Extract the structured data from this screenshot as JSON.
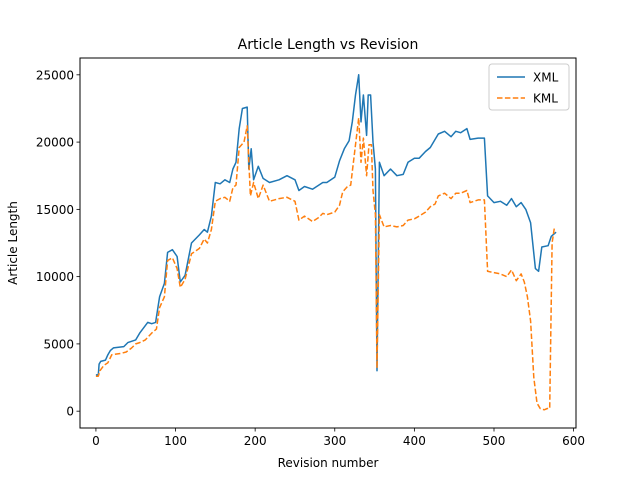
{
  "chart_data": {
    "type": "line",
    "title": "Article Length vs Revision",
    "xlabel": "Revision number",
    "ylabel": "Article Length",
    "xlim": [
      -20,
      603
    ],
    "ylim": [
      -1250,
      26250
    ],
    "xticks": [
      0,
      100,
      200,
      300,
      400,
      500,
      600
    ],
    "yticks": [
      0,
      5000,
      10000,
      15000,
      20000,
      25000
    ],
    "legend_position": "top-right",
    "grid": false,
    "series": [
      {
        "name": "XML",
        "color": "#1f77b4",
        "style": "solid",
        "points": [
          [
            0,
            2700
          ],
          [
            3,
            2700
          ],
          [
            4,
            3500
          ],
          [
            6,
            3700
          ],
          [
            12,
            3800
          ],
          [
            15,
            4200
          ],
          [
            18,
            4500
          ],
          [
            22,
            4700
          ],
          [
            35,
            4800
          ],
          [
            40,
            5100
          ],
          [
            50,
            5300
          ],
          [
            55,
            5800
          ],
          [
            65,
            6600
          ],
          [
            70,
            6500
          ],
          [
            75,
            6600
          ],
          [
            80,
            8500
          ],
          [
            86,
            9500
          ],
          [
            90,
            11800
          ],
          [
            96,
            12000
          ],
          [
            102,
            11500
          ],
          [
            106,
            9600
          ],
          [
            112,
            10100
          ],
          [
            120,
            12500
          ],
          [
            130,
            13100
          ],
          [
            136,
            13500
          ],
          [
            140,
            13300
          ],
          [
            145,
            14500
          ],
          [
            150,
            17000
          ],
          [
            156,
            16900
          ],
          [
            162,
            17200
          ],
          [
            168,
            17000
          ],
          [
            172,
            18000
          ],
          [
            176,
            18500
          ],
          [
            180,
            21000
          ],
          [
            184,
            22500
          ],
          [
            190,
            22600
          ],
          [
            192,
            18000
          ],
          [
            195,
            19500
          ],
          [
            198,
            17200
          ],
          [
            204,
            18200
          ],
          [
            210,
            17300
          ],
          [
            218,
            17000
          ],
          [
            230,
            17200
          ],
          [
            240,
            17500
          ],
          [
            250,
            17200
          ],
          [
            255,
            16400
          ],
          [
            262,
            16700
          ],
          [
            272,
            16500
          ],
          [
            280,
            16800
          ],
          [
            285,
            17000
          ],
          [
            290,
            17000
          ],
          [
            300,
            17400
          ],
          [
            306,
            18600
          ],
          [
            312,
            19500
          ],
          [
            318,
            20100
          ],
          [
            322,
            21500
          ],
          [
            326,
            23500
          ],
          [
            330,
            25000
          ],
          [
            333,
            21500
          ],
          [
            336,
            23500
          ],
          [
            340,
            20500
          ],
          [
            342,
            23500
          ],
          [
            345,
            23500
          ],
          [
            348,
            20000
          ],
          [
            351,
            18000
          ],
          [
            353,
            3000
          ],
          [
            356,
            18500
          ],
          [
            362,
            17500
          ],
          [
            370,
            18000
          ],
          [
            378,
            17500
          ],
          [
            386,
            17600
          ],
          [
            392,
            18500
          ],
          [
            400,
            18800
          ],
          [
            406,
            18800
          ],
          [
            414,
            19300
          ],
          [
            420,
            19600
          ],
          [
            426,
            20200
          ],
          [
            430,
            20600
          ],
          [
            438,
            20800
          ],
          [
            446,
            20400
          ],
          [
            452,
            20800
          ],
          [
            458,
            20700
          ],
          [
            466,
            21000
          ],
          [
            470,
            20200
          ],
          [
            480,
            20300
          ],
          [
            488,
            20300
          ],
          [
            492,
            16000
          ],
          [
            500,
            15500
          ],
          [
            508,
            15600
          ],
          [
            516,
            15300
          ],
          [
            522,
            15800
          ],
          [
            528,
            15200
          ],
          [
            534,
            15500
          ],
          [
            540,
            15000
          ],
          [
            546,
            14000
          ],
          [
            552,
            10600
          ],
          [
            556,
            10400
          ],
          [
            560,
            12200
          ],
          [
            568,
            12300
          ],
          [
            572,
            13000
          ],
          [
            578,
            13300
          ]
        ]
      },
      {
        "name": "KML",
        "color": "#ff7f0e",
        "style": "dashed",
        "points": [
          [
            0,
            2600
          ],
          [
            3,
            2600
          ],
          [
            5,
            3000
          ],
          [
            10,
            3400
          ],
          [
            15,
            3600
          ],
          [
            20,
            4200
          ],
          [
            32,
            4300
          ],
          [
            38,
            4400
          ],
          [
            45,
            4700
          ],
          [
            50,
            5000
          ],
          [
            55,
            5100
          ],
          [
            62,
            5300
          ],
          [
            70,
            5800
          ],
          [
            76,
            6100
          ],
          [
            80,
            7700
          ],
          [
            86,
            8500
          ],
          [
            90,
            11200
          ],
          [
            96,
            11400
          ],
          [
            102,
            10600
          ],
          [
            106,
            9200
          ],
          [
            112,
            9800
          ],
          [
            120,
            11700
          ],
          [
            130,
            12100
          ],
          [
            136,
            12800
          ],
          [
            140,
            12500
          ],
          [
            145,
            13500
          ],
          [
            150,
            15600
          ],
          [
            156,
            15800
          ],
          [
            162,
            15900
          ],
          [
            168,
            15600
          ],
          [
            172,
            16600
          ],
          [
            176,
            16800
          ],
          [
            180,
            19600
          ],
          [
            186,
            20000
          ],
          [
            190,
            21200
          ],
          [
            194,
            16000
          ],
          [
            198,
            17000
          ],
          [
            204,
            15800
          ],
          [
            210,
            16800
          ],
          [
            218,
            15600
          ],
          [
            230,
            15800
          ],
          [
            240,
            15900
          ],
          [
            250,
            15600
          ],
          [
            255,
            14200
          ],
          [
            262,
            14500
          ],
          [
            272,
            14100
          ],
          [
            280,
            14400
          ],
          [
            285,
            14700
          ],
          [
            290,
            14600
          ],
          [
            300,
            14800
          ],
          [
            306,
            15300
          ],
          [
            310,
            16300
          ],
          [
            316,
            16700
          ],
          [
            320,
            16800
          ],
          [
            326,
            19800
          ],
          [
            330,
            21800
          ],
          [
            333,
            18500
          ],
          [
            336,
            20300
          ],
          [
            340,
            17500
          ],
          [
            343,
            19800
          ],
          [
            346,
            19800
          ],
          [
            348,
            16400
          ],
          [
            351,
            14600
          ],
          [
            353,
            3200
          ],
          [
            356,
            14600
          ],
          [
            362,
            13700
          ],
          [
            370,
            13800
          ],
          [
            378,
            13700
          ],
          [
            386,
            13800
          ],
          [
            392,
            14200
          ],
          [
            400,
            14300
          ],
          [
            406,
            14500
          ],
          [
            414,
            14800
          ],
          [
            420,
            15200
          ],
          [
            426,
            15400
          ],
          [
            430,
            16000
          ],
          [
            438,
            16200
          ],
          [
            446,
            15800
          ],
          [
            452,
            16200
          ],
          [
            458,
            16200
          ],
          [
            466,
            16400
          ],
          [
            470,
            15500
          ],
          [
            480,
            15700
          ],
          [
            488,
            15700
          ],
          [
            492,
            10400
          ],
          [
            500,
            10300
          ],
          [
            508,
            10200
          ],
          [
            516,
            10000
          ],
          [
            522,
            10500
          ],
          [
            528,
            9700
          ],
          [
            534,
            10200
          ],
          [
            538,
            9600
          ],
          [
            542,
            8500
          ],
          [
            546,
            6700
          ],
          [
            550,
            2500
          ],
          [
            554,
            600
          ],
          [
            558,
            200
          ],
          [
            563,
            100
          ],
          [
            567,
            200
          ],
          [
            570,
            200
          ],
          [
            573,
            12500
          ],
          [
            576,
            13700
          ]
        ]
      }
    ]
  }
}
